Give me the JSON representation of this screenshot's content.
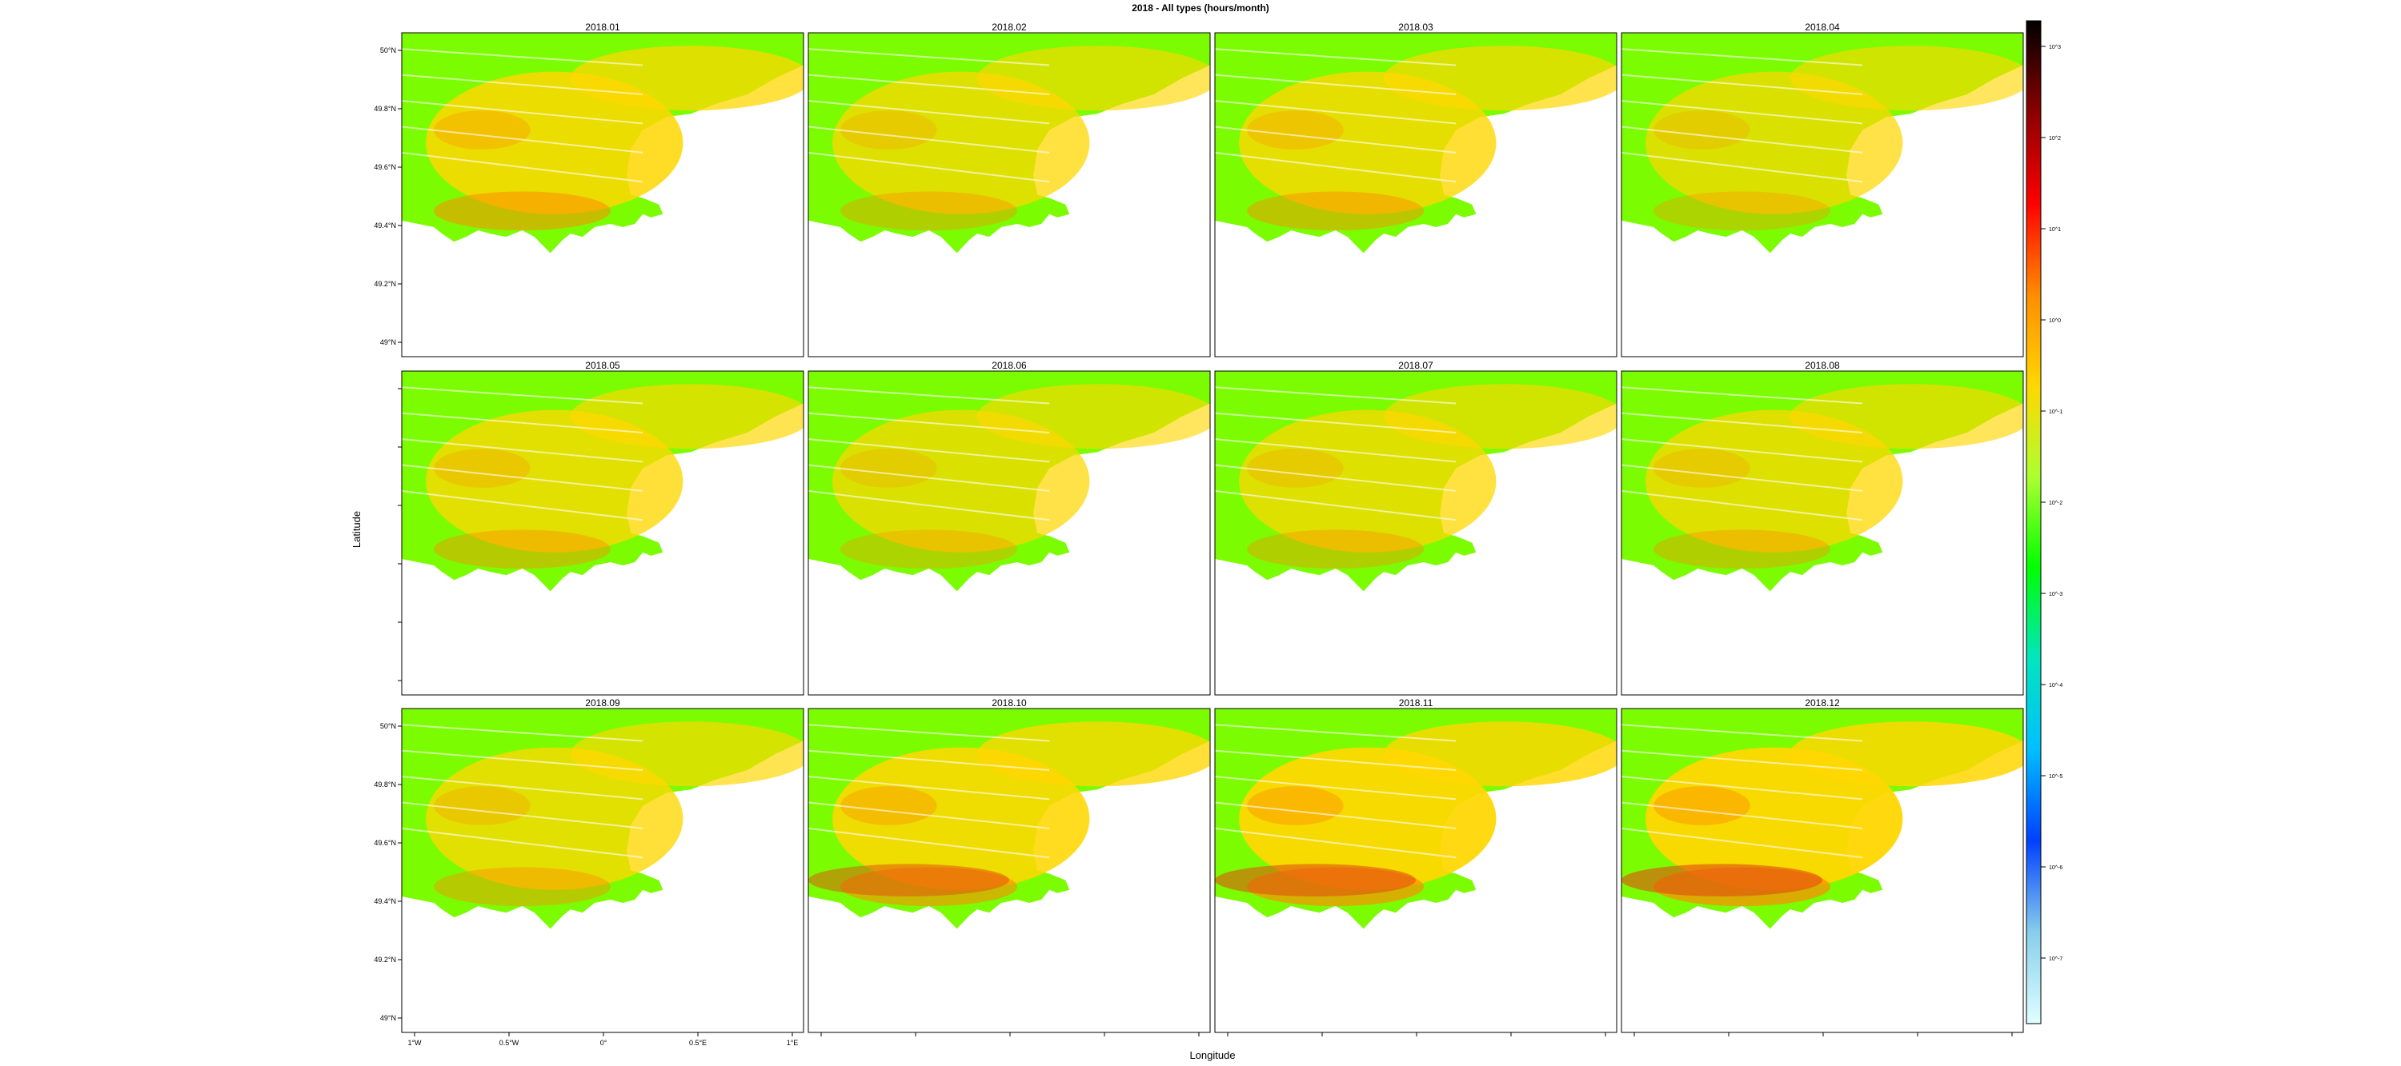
{
  "title": "2018 - All types (hours/month)",
  "xlabel": "Longitude",
  "ylabel": "Latitude",
  "panels": [
    "2018.01",
    "2018.02",
    "2018.03",
    "2018.04",
    "2018.05",
    "2018.06",
    "2018.07",
    "2018.08",
    "2018.09",
    "2018.10",
    "2018.11",
    "2018.12"
  ],
  "lat_ticks": [
    "50°N",
    "49.8°N",
    "49.6°N",
    "49.4°N",
    "49.2°N",
    "49°N"
  ],
  "lon_ticks": [
    "1°W",
    "0.5°W",
    "0°",
    "0.5°E",
    "1°E"
  ],
  "colorbar": {
    "ticks": [
      "10^3",
      "10^2",
      "10^1",
      "10^0",
      "10^-1",
      "10^-2",
      "10^-3",
      "10^-4",
      "10^-5",
      "10^-6",
      "10^-7"
    ],
    "colors": [
      "#000000",
      "#8b0000",
      "#ff0000",
      "#ff8c00",
      "#ffd700",
      "#adff2f",
      "#00ff00",
      "#00e5c0",
      "#00bfff",
      "#0040ff",
      "#87ceeb",
      "#e0ffff"
    ]
  },
  "palette": {
    "low": "#7cfc00",
    "mid": "#ffd700",
    "high": "#ff8c00",
    "peak": "#e05010",
    "water": "#ffffff"
  }
}
